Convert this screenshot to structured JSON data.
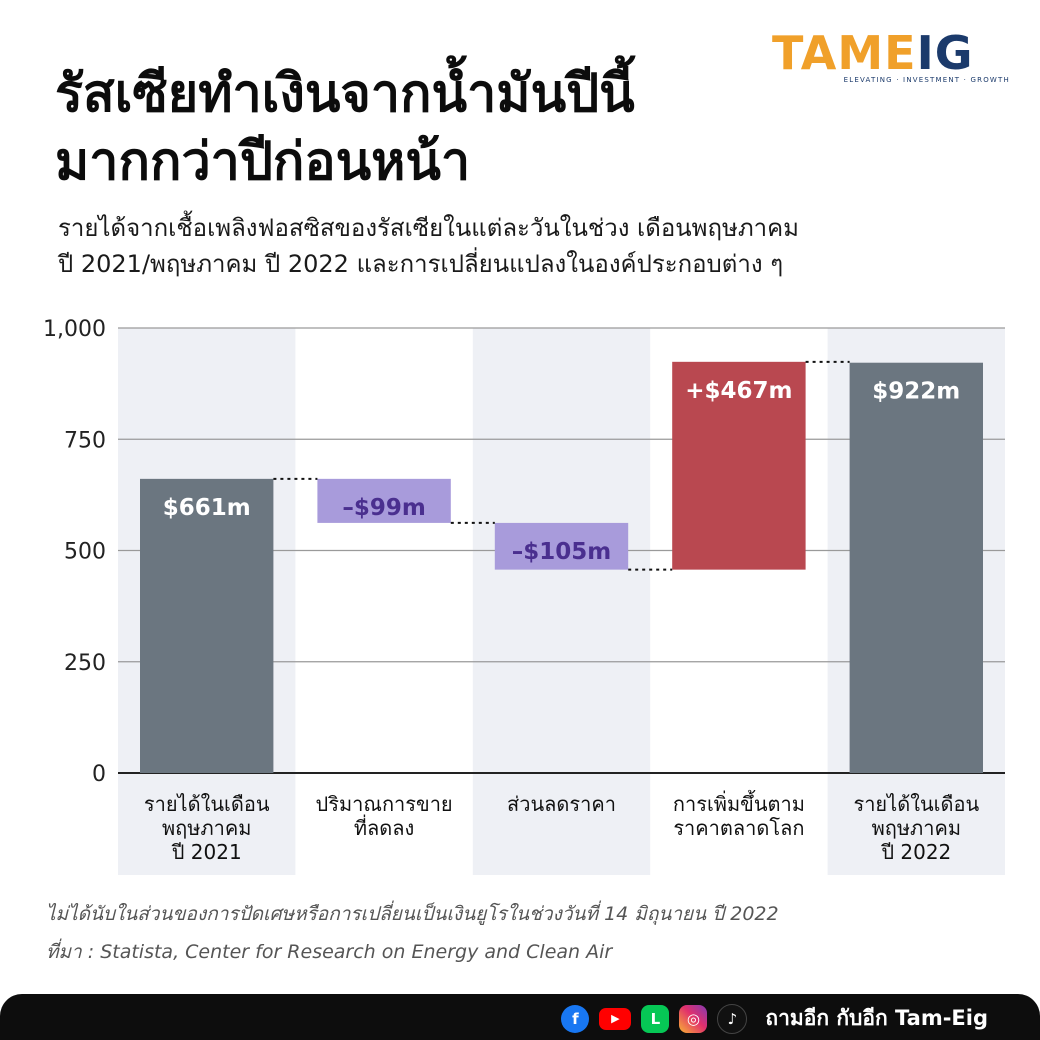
{
  "header": {
    "title_line1": "รัสเซียทำเงินจากน้ำมันปีนี้",
    "title_line2": "มากกว่าปีก่อนหน้า",
    "subtitle_line1": "รายได้จากเชื้อเพลิงฟอสซิสของรัสเซียในแต่ละวันในช่วง เดือนพฤษภาคม",
    "subtitle_line2": "ปี 2021/พฤษภาคม ปี 2022 และการเปลี่ยนแปลงในองค์ประกอบต่าง ๆ"
  },
  "logo": {
    "text_part1": "TAME",
    "text_part2": "IG",
    "tagline": "ELEVATING · INVESTMENT · GROWTH",
    "colors": {
      "orange": "#f0a02a",
      "navy": "#1b3a6b"
    }
  },
  "chart_data": {
    "type": "waterfall",
    "ylim": [
      0,
      1000
    ],
    "yticks": [
      0,
      250,
      500,
      750,
      1000
    ],
    "ytick_labels": [
      "0",
      "250",
      "500",
      "750",
      "1,000"
    ],
    "grid": true,
    "categories": [
      [
        "รายได้ในเดือน",
        "พฤษภาคม",
        "ปี 2021"
      ],
      [
        "ปริมาณการขาย",
        "ที่ลดลง"
      ],
      [
        "ส่วนลดราคา"
      ],
      [
        "การเพิ่มขึ้นตาม",
        "ราคาตลาดโลก"
      ],
      [
        "รายได้ในเดือน",
        "พฤษภาคม",
        "ปี 2022"
      ]
    ],
    "bars": [
      {
        "kind": "total",
        "start": 0,
        "end": 661,
        "label": "$661m",
        "color": "#6b7680",
        "label_color": "#ffffff"
      },
      {
        "kind": "change",
        "start": 661,
        "end": 562,
        "label": "–$99m",
        "color": "#a89bdb",
        "label_color": "#4a2f8f"
      },
      {
        "kind": "change",
        "start": 562,
        "end": 457,
        "label": "–$105m",
        "color": "#a89bdb",
        "label_color": "#4a2f8f"
      },
      {
        "kind": "change",
        "start": 457,
        "end": 924,
        "label": "+$467m",
        "color": "#b94850",
        "label_color": "#ffffff"
      },
      {
        "kind": "total",
        "start": 0,
        "end": 922,
        "label": "$922m",
        "color": "#6b7680",
        "label_color": "#ffffff"
      }
    ],
    "column_band_color": "#eef0f5"
  },
  "notes": {
    "note": "ไม่ได้นับในส่วนของการปัดเศษหรือการเปลี่ยนเป็นเงินยูโรในช่วงวันที่ 14 มิถุนายน ปี 2022",
    "source": "ที่มา : Statista, Center for Research on Energy and Clean Air"
  },
  "footer": {
    "channel_name": "ถามอีก กับอีก Tam-Eig",
    "icons": [
      {
        "name": "facebook-icon",
        "glyph": "f"
      },
      {
        "name": "youtube-icon",
        "glyph": "▶"
      },
      {
        "name": "line-icon",
        "glyph": "L"
      },
      {
        "name": "instagram-icon",
        "glyph": "◎"
      },
      {
        "name": "tiktok-icon",
        "glyph": "♪"
      }
    ]
  }
}
